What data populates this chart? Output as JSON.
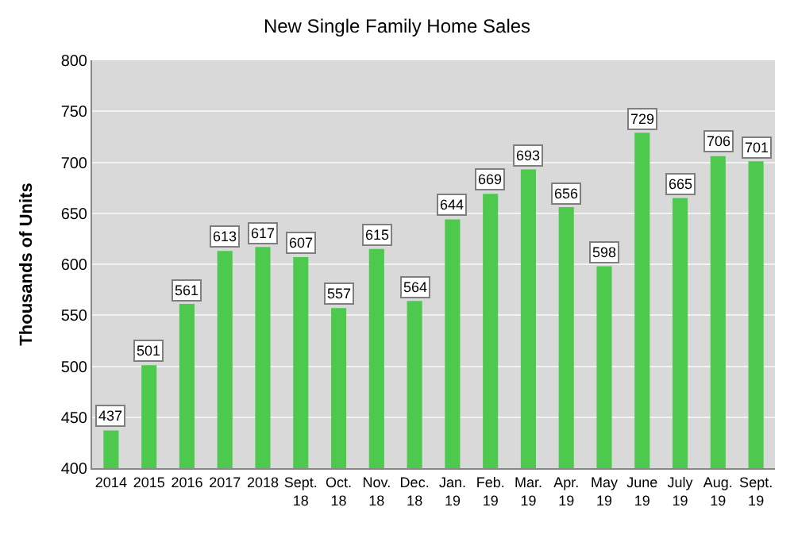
{
  "chart_data": {
    "type": "bar",
    "title": "New Single Family Home Sales",
    "ylabel": "Thousands of Units",
    "categories": [
      "2014",
      "2015",
      "2016",
      "2017",
      "2018",
      "Sept.\n18",
      "Oct.\n18",
      "Nov.\n18",
      "Dec.\n18",
      "Jan.\n19",
      "Feb.\n19",
      "Mar.\n19",
      "Apr.\n19",
      "May\n19",
      "June\n19",
      "July\n19",
      "Aug.\n19",
      "Sept.\n19"
    ],
    "values": [
      437,
      501,
      561,
      613,
      617,
      607,
      557,
      615,
      564,
      644,
      669,
      693,
      656,
      598,
      729,
      665,
      706,
      701
    ],
    "color": "#4dc94d",
    "ylim": [
      400,
      800
    ],
    "yticks": [
      400,
      450,
      500,
      550,
      600,
      650,
      700,
      750,
      800
    ],
    "grid": "y",
    "data_labels": true
  }
}
